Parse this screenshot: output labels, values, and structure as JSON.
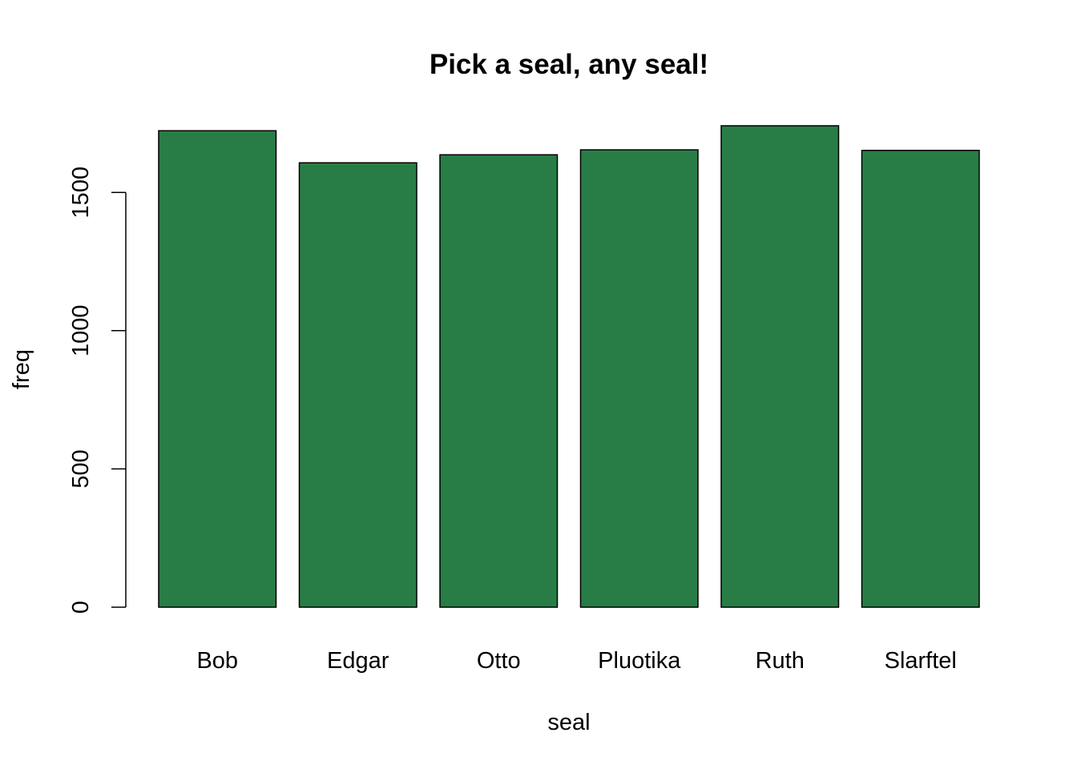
{
  "chart_data": {
    "type": "bar",
    "title": "Pick a seal, any seal!",
    "xlabel": "seal",
    "ylabel": "freq",
    "categories": [
      "Bob",
      "Edgar",
      "Otto",
      "Pluotika",
      "Ruth",
      "Slarftel"
    ],
    "values": [
      1723,
      1607,
      1636,
      1654,
      1741,
      1652
    ],
    "yticks": [
      0,
      500,
      1000,
      1500
    ],
    "ylim": [
      0,
      1741
    ],
    "bar_color": "#287d46",
    "grid": false,
    "legend": "none"
  }
}
